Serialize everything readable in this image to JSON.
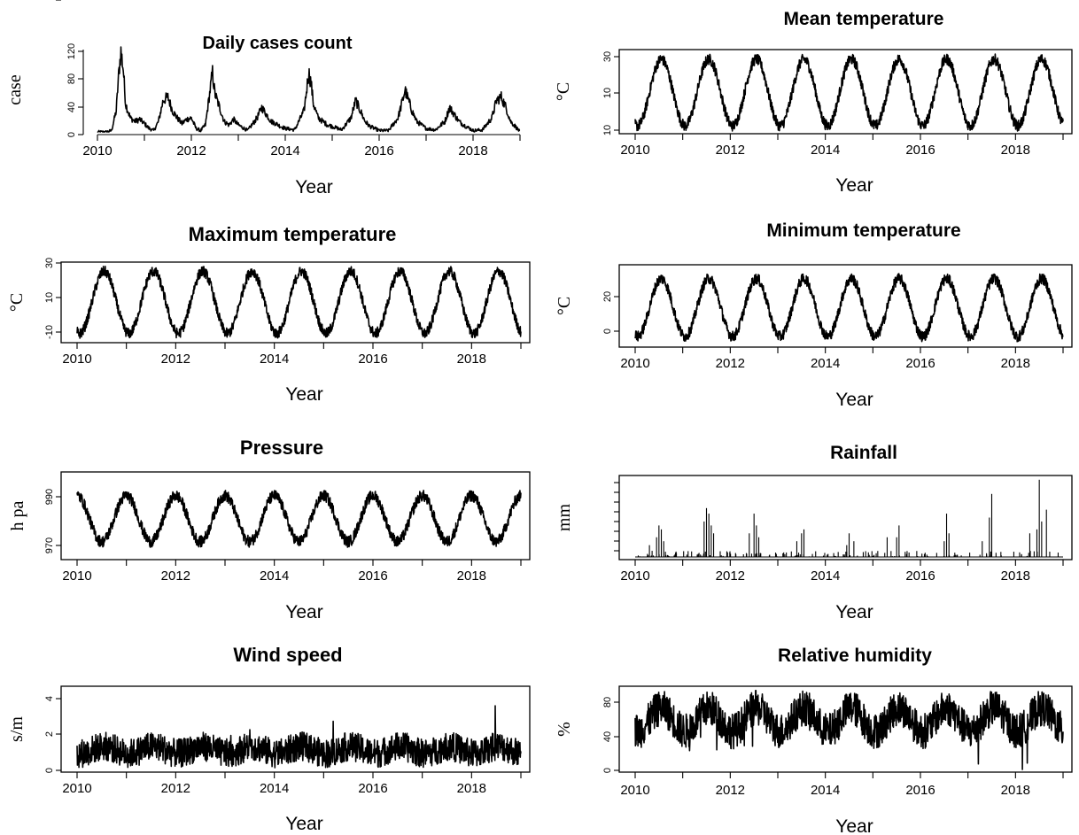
{
  "colors": {
    "series": "#000000",
    "background": "#ffffff"
  },
  "chart_data": [
    {
      "type": "line",
      "title": "Daily cases count",
      "xlabel": "Year",
      "ylabel": "case",
      "xlim": [
        2010,
        2019
      ],
      "ylim": [
        0,
        120
      ],
      "framed": false,
      "xticks": [
        "2010",
        "2012",
        "2014",
        "2016",
        "2018"
      ],
      "yticks": [
        "0",
        "40",
        "80",
        "120"
      ],
      "x": [
        2010.0,
        2010.1,
        2010.2,
        2010.3,
        2010.4,
        2010.45,
        2010.5,
        2010.55,
        2010.6,
        2010.7,
        2010.8,
        2010.9,
        2011.0,
        2011.1,
        2011.2,
        2011.3,
        2011.4,
        2011.5,
        2011.6,
        2011.7,
        2011.8,
        2011.9,
        2012.0,
        2012.1,
        2012.2,
        2012.3,
        2012.4,
        2012.45,
        2012.5,
        2012.6,
        2012.7,
        2012.8,
        2012.9,
        2013.0,
        2013.2,
        2013.4,
        2013.5,
        2013.6,
        2013.7,
        2013.8,
        2013.9,
        2014.0,
        2014.2,
        2014.4,
        2014.5,
        2014.55,
        2014.6,
        2014.7,
        2014.8,
        2014.9,
        2015.0,
        2015.2,
        2015.4,
        2015.5,
        2015.6,
        2015.7,
        2015.8,
        2016.0,
        2016.2,
        2016.4,
        2016.5,
        2016.55,
        2016.6,
        2016.7,
        2016.8,
        2016.9,
        2017.0,
        2017.2,
        2017.4,
        2017.5,
        2017.6,
        2017.7,
        2017.8,
        2018.0,
        2018.2,
        2018.4,
        2018.5,
        2018.6,
        2018.7,
        2018.8,
        2018.9,
        2019.0
      ],
      "y": [
        0,
        0,
        0,
        2,
        30,
        80,
        115,
        90,
        40,
        20,
        15,
        18,
        12,
        5,
        2,
        15,
        45,
        50,
        30,
        20,
        12,
        18,
        20,
        5,
        2,
        10,
        60,
        85,
        55,
        35,
        15,
        10,
        18,
        10,
        2,
        20,
        35,
        25,
        15,
        12,
        8,
        5,
        3,
        30,
        85,
        70,
        40,
        20,
        15,
        10,
        8,
        3,
        20,
        45,
        30,
        15,
        8,
        2,
        2,
        20,
        45,
        60,
        50,
        30,
        15,
        10,
        5,
        3,
        15,
        35,
        25,
        15,
        10,
        2,
        3,
        20,
        45,
        50,
        35,
        15,
        8,
        0
      ]
    },
    {
      "type": "line",
      "title": "Mean temperature",
      "xlabel": "Year",
      "ylabel": "°C",
      "xlim": [
        2010,
        2019
      ],
      "ylim": [
        -12,
        33
      ],
      "framed": true,
      "xticks": [
        "2010",
        "2012",
        "2014",
        "2016",
        "2018"
      ],
      "yticks": [
        "10",
        "10",
        "30"
      ],
      "note": "seasonal oscillation, peaks ~30 in summer, troughs ~-10 in winter",
      "amplitude": 19,
      "offset": 10
    },
    {
      "type": "line",
      "title": "Maximum temperature",
      "xlabel": "Year",
      "ylabel": "°C",
      "xlim": [
        2010,
        2019
      ],
      "ylim": [
        -16,
        30
      ],
      "framed": true,
      "xticks": [
        "2010",
        "2012",
        "2014",
        "2016",
        "2018"
      ],
      "yticks": [
        "-10",
        "10",
        "30"
      ],
      "amplitude": 19,
      "offset": 7
    },
    {
      "type": "line",
      "title": "Minimum temperature",
      "xlabel": "Year",
      "ylabel": "°C",
      "xlim": [
        2010,
        2019
      ],
      "ylim": [
        -8,
        40
      ],
      "framed": true,
      "xticks": [
        "2010",
        "2012",
        "2014",
        "2016",
        "2018"
      ],
      "yticks": [
        "0",
        "20"
      ],
      "amplitude": 18,
      "offset": 15
    },
    {
      "type": "line",
      "title": "Pressure",
      "xlabel": "Year",
      "ylabel": "h pa",
      "xlim": [
        2010,
        2019
      ],
      "ylim": [
        962,
        1005
      ],
      "framed": true,
      "xticks": [
        "2010",
        "2012",
        "2014",
        "2016",
        "2018"
      ],
      "yticks": [
        "970",
        "990"
      ],
      "amplitude": 12,
      "offset": 982
    },
    {
      "type": "bar",
      "title": "Rainfall",
      "xlabel": "Year",
      "ylabel": "mm",
      "xlim": [
        2010,
        2019
      ],
      "ylim": [
        0,
        100
      ],
      "framed": true,
      "xticks": [
        "2010",
        "2012",
        "2014",
        "2016",
        "2018"
      ],
      "yticks": [],
      "x": [
        2010.3,
        2010.45,
        2010.5,
        2010.55,
        2010.6,
        2011.45,
        2011.5,
        2011.55,
        2011.6,
        2011.65,
        2012.4,
        2012.5,
        2012.55,
        2012.6,
        2013.4,
        2013.5,
        2013.55,
        2014.45,
        2014.5,
        2014.6,
        2015.3,
        2015.5,
        2015.55,
        2016.5,
        2016.55,
        2016.6,
        2017.3,
        2017.45,
        2017.5,
        2018.3,
        2018.45,
        2018.5,
        2018.55,
        2018.65
      ],
      "values": [
        15,
        25,
        40,
        35,
        20,
        45,
        62,
        55,
        40,
        30,
        30,
        55,
        40,
        25,
        20,
        30,
        35,
        15,
        30,
        20,
        25,
        25,
        40,
        20,
        55,
        30,
        20,
        50,
        80,
        30,
        35,
        98,
        45,
        60
      ]
    },
    {
      "type": "line",
      "title": "Wind speed",
      "xlabel": "Year",
      "ylabel": "s/m",
      "xlim": [
        2010,
        2019
      ],
      "ylim": [
        0,
        7
      ],
      "framed": true,
      "xticks": [
        "2010",
        "2012",
        "2014",
        "2016",
        "2018"
      ],
      "yticks": [
        "0",
        "2",
        "4",
        "6"
      ],
      "amplitude": 0.3,
      "offset": 1.7
    },
    {
      "type": "line",
      "title": "Relative humidity",
      "xlabel": "Year",
      "ylabel": "%",
      "xlim": [
        2010,
        2019
      ],
      "ylim": [
        0,
        105
      ],
      "framed": true,
      "xticks": [
        "2010",
        "2012",
        "2014",
        "2016",
        "2018"
      ],
      "yticks": [
        "0",
        "40",
        "80"
      ],
      "amplitude": 15,
      "offset": 65
    }
  ]
}
